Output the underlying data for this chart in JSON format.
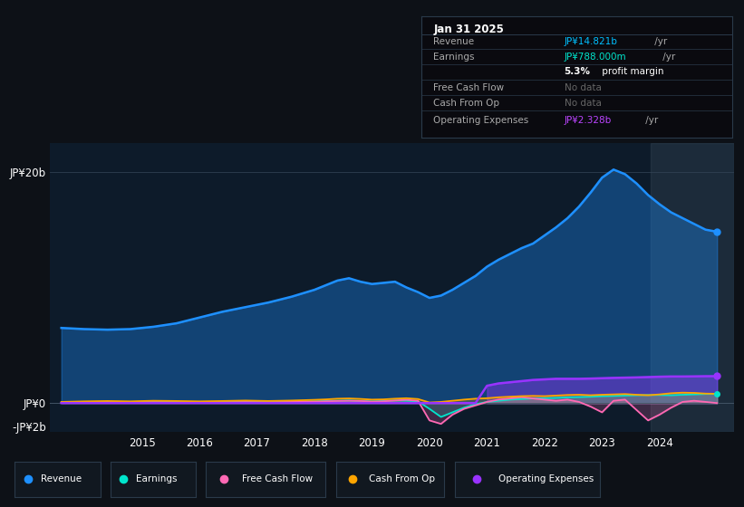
{
  "bg_color": "#0d1117",
  "plot_bg_color": "#0d1b2a",
  "ylabel_top": "JP¥20b",
  "ylabel_zero": "JP¥0",
  "ylabel_neg": "-JP¥2b",
  "info_box": {
    "title": "Jan 31 2025",
    "rows": [
      {
        "label": "Revenue",
        "value": "JP¥14.821b",
        "suffix": " /yr",
        "value_color": "#00bfff"
      },
      {
        "label": "Earnings",
        "value": "JP¥788.000m",
        "suffix": " /yr",
        "value_color": "#00e5cc"
      },
      {
        "label": "",
        "value": "5.3%",
        "suffix": " profit margin",
        "value_color": "#ffffff"
      },
      {
        "label": "Free Cash Flow",
        "value": "No data",
        "suffix": "",
        "value_color": "#666666"
      },
      {
        "label": "Cash From Op",
        "value": "No data",
        "suffix": "",
        "value_color": "#666666"
      },
      {
        "label": "Operating Expenses",
        "value": "JP¥2.328b",
        "suffix": " /yr",
        "value_color": "#bb44ff"
      }
    ]
  },
  "x_years": [
    2013.6,
    2014.0,
    2014.4,
    2014.8,
    2015.2,
    2015.6,
    2016.0,
    2016.4,
    2016.8,
    2017.2,
    2017.6,
    2018.0,
    2018.2,
    2018.4,
    2018.6,
    2018.8,
    2019.0,
    2019.2,
    2019.4,
    2019.6,
    2019.8,
    2020.0,
    2020.2,
    2020.4,
    2020.6,
    2020.8,
    2021.0,
    2021.2,
    2021.4,
    2021.6,
    2021.8,
    2022.0,
    2022.2,
    2022.4,
    2022.6,
    2022.8,
    2023.0,
    2023.2,
    2023.4,
    2023.6,
    2023.8,
    2024.0,
    2024.2,
    2024.4,
    2024.6,
    2024.8,
    2025.0
  ],
  "revenue": [
    6.5,
    6.4,
    6.35,
    6.4,
    6.6,
    6.9,
    7.4,
    7.9,
    8.3,
    8.7,
    9.2,
    9.8,
    10.2,
    10.6,
    10.8,
    10.5,
    10.3,
    10.4,
    10.5,
    10.0,
    9.6,
    9.1,
    9.3,
    9.8,
    10.4,
    11.0,
    11.8,
    12.4,
    12.9,
    13.4,
    13.8,
    14.5,
    15.2,
    16.0,
    17.0,
    18.2,
    19.5,
    20.2,
    19.8,
    19.0,
    18.0,
    17.2,
    16.5,
    16.0,
    15.5,
    15.0,
    14.821
  ],
  "earnings": [
    0.05,
    0.07,
    0.09,
    0.1,
    0.12,
    0.1,
    0.08,
    0.1,
    0.12,
    0.1,
    0.12,
    0.15,
    0.18,
    0.2,
    0.22,
    0.18,
    0.15,
    0.18,
    0.22,
    0.2,
    0.15,
    -0.5,
    -1.2,
    -0.8,
    -0.4,
    -0.1,
    0.1,
    0.2,
    0.3,
    0.35,
    0.4,
    0.42,
    0.45,
    0.5,
    0.52,
    0.55,
    0.6,
    0.62,
    0.65,
    0.68,
    0.7,
    0.7,
    0.68,
    0.72,
    0.75,
    0.788,
    0.788
  ],
  "free_cash_flow": [
    0.02,
    0.05,
    0.08,
    0.06,
    0.08,
    0.06,
    0.05,
    0.07,
    0.09,
    0.07,
    0.1,
    0.12,
    0.15,
    0.18,
    0.2,
    0.18,
    0.12,
    0.15,
    0.22,
    0.28,
    0.2,
    -1.5,
    -1.8,
    -1.0,
    -0.5,
    -0.2,
    0.1,
    0.3,
    0.4,
    0.5,
    0.4,
    0.3,
    0.2,
    0.3,
    0.1,
    -0.3,
    -0.8,
    0.2,
    0.3,
    -0.6,
    -1.5,
    -1.0,
    -0.4,
    0.1,
    0.2,
    0.1,
    0.0
  ],
  "cash_from_op": [
    0.1,
    0.15,
    0.18,
    0.15,
    0.2,
    0.18,
    0.15,
    0.18,
    0.22,
    0.18,
    0.22,
    0.28,
    0.32,
    0.38,
    0.4,
    0.36,
    0.3,
    0.32,
    0.38,
    0.42,
    0.35,
    0.05,
    0.1,
    0.2,
    0.3,
    0.38,
    0.42,
    0.5,
    0.55,
    0.6,
    0.62,
    0.6,
    0.65,
    0.7,
    0.72,
    0.68,
    0.72,
    0.75,
    0.78,
    0.72,
    0.68,
    0.75,
    0.85,
    0.9,
    0.88,
    0.82,
    0.8
  ],
  "op_expenses": [
    0.0,
    0.0,
    0.0,
    0.0,
    0.0,
    0.0,
    0.0,
    0.0,
    0.0,
    0.0,
    0.0,
    0.0,
    0.0,
    0.0,
    0.0,
    0.0,
    0.0,
    0.0,
    0.0,
    0.0,
    0.0,
    0.0,
    0.0,
    0.0,
    0.0,
    0.0,
    1.5,
    1.7,
    1.8,
    1.9,
    2.0,
    2.05,
    2.1,
    2.1,
    2.1,
    2.12,
    2.15,
    2.18,
    2.2,
    2.22,
    2.25,
    2.28,
    2.3,
    2.3,
    2.31,
    2.325,
    2.328
  ],
  "revenue_color": "#1e90ff",
  "earnings_color": "#00e5cc",
  "fcf_color": "#ff69b4",
  "cashop_color": "#ffa500",
  "opex_color": "#9933ff",
  "tick_years": [
    2015,
    2016,
    2017,
    2018,
    2019,
    2020,
    2021,
    2022,
    2023,
    2024
  ],
  "ylim": [
    -2.5,
    22.5
  ],
  "xlim": [
    2013.4,
    2025.3
  ],
  "legend_items": [
    {
      "label": "Revenue",
      "color": "#1e90ff"
    },
    {
      "label": "Earnings",
      "color": "#00e5cc"
    },
    {
      "label": "Free Cash Flow",
      "color": "#ff69b4"
    },
    {
      "label": "Cash From Op",
      "color": "#ffa500"
    },
    {
      "label": "Operating Expenses",
      "color": "#9933ff"
    }
  ]
}
